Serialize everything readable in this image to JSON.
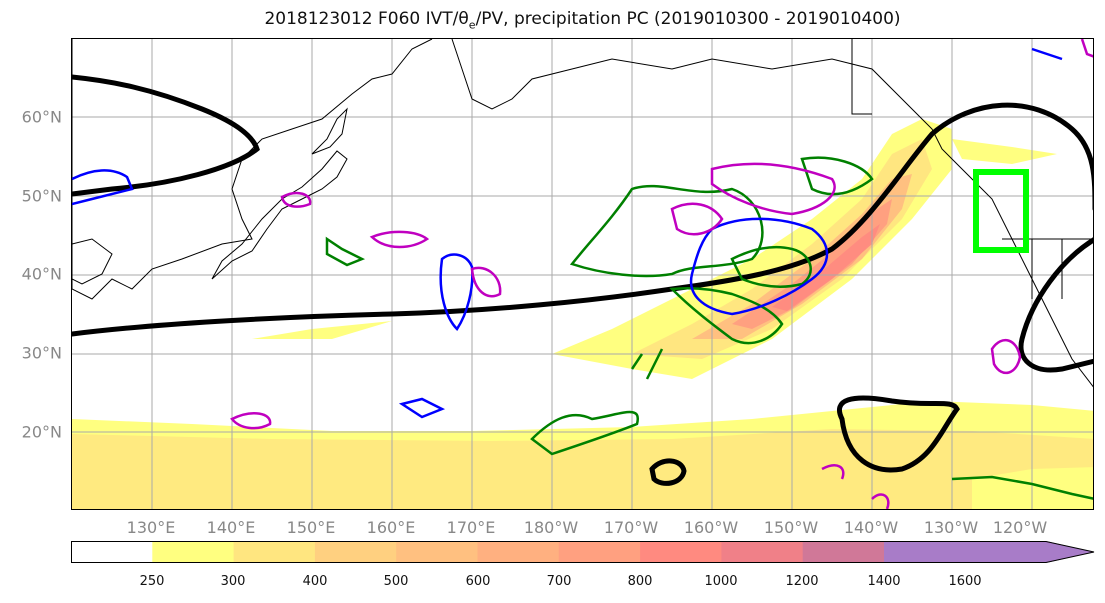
{
  "map": {
    "title_main": "2018123012 F060 IVT/θ",
    "title_sub": "e",
    "title_rest": "/PV, precipitation PC (2019010300 - 2019010400)",
    "lat_labels": [
      "60°N",
      "50°N",
      "40°N",
      "30°N",
      "20°N"
    ],
    "lat_values": [
      60,
      50,
      40,
      30,
      20
    ],
    "lon_labels": [
      "130°E",
      "140°E",
      "150°E",
      "160°E",
      "170°E",
      "180°W",
      "170°W",
      "160°W",
      "150°W",
      "140°W",
      "130°W",
      "120°W"
    ],
    "lon_values": [
      130,
      140,
      150,
      160,
      170,
      180,
      190,
      200,
      210,
      220,
      230,
      240
    ],
    "extent": {
      "lon_min": 120,
      "lon_max": 248,
      "lat_min": 10,
      "lat_max": 70
    },
    "colorbar": {
      "ticks": [
        "250",
        "300",
        "400",
        "500",
        "600",
        "700",
        "800",
        "1000",
        "1200",
        "1400",
        "1600"
      ],
      "colors": [
        "#ffffff",
        "#ffff80",
        "#ffe680",
        "#ffd080",
        "#ffc080",
        "#ffb080",
        "#ffa080",
        "#ff8a80",
        "#f08088",
        "#d07898",
        "#a87cc8"
      ],
      "extend": "max"
    },
    "colors": {
      "ivt_contour": "#000000",
      "theta_e": "#008000",
      "pv_positive": "#c000c0",
      "pv_negative": "#0000ff",
      "target_box": "#00ff00",
      "coast": "#000000"
    }
  }
}
